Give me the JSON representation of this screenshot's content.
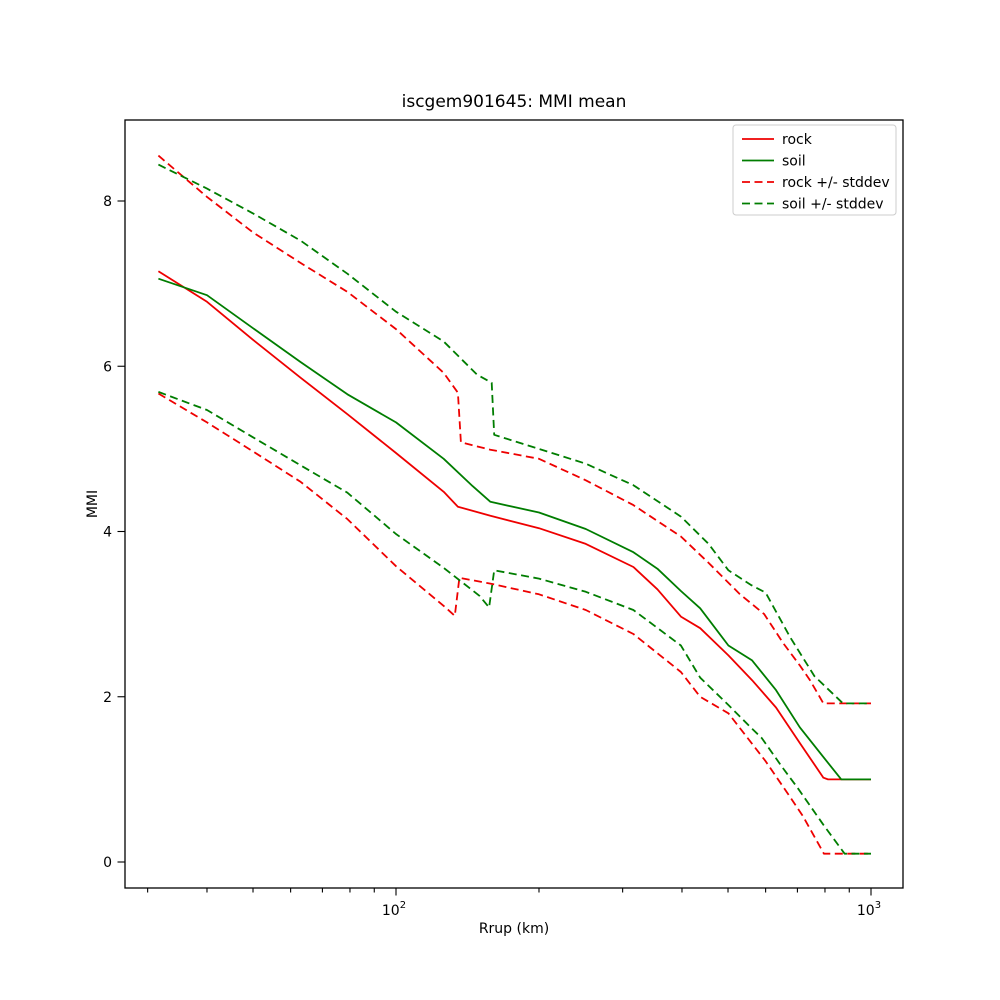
{
  "chart_data": {
    "type": "line",
    "title": "iscgem901645: MMI mean",
    "xlabel": "Rrup (km)",
    "ylabel": "MMI",
    "x_scale": "log10",
    "x_range_km": [
      26.9,
      1170
    ],
    "y_range": [
      -0.31,
      8.98
    ],
    "grid": false,
    "legend_position": "upper right",
    "colors": {
      "rock": "#ee0000",
      "soil": "#007d00"
    },
    "yticks": [
      0,
      2,
      4,
      6,
      8
    ],
    "xticks_major": [
      {
        "value": 100,
        "base": "10",
        "exp": "2"
      },
      {
        "value": 1000,
        "base": "10",
        "exp": "3"
      }
    ],
    "xticks_minor": [
      30,
      40,
      50,
      60,
      70,
      80,
      90,
      200,
      300,
      400,
      500,
      600,
      700,
      800,
      900
    ],
    "legend": [
      {
        "label": "rock",
        "color": "rock",
        "dashed": false
      },
      {
        "label": "soil",
        "color": "soil",
        "dashed": false
      },
      {
        "label": "rock +/- stddev",
        "color": "rock",
        "dashed": true
      },
      {
        "label": "soil +/- stddev",
        "color": "soil",
        "dashed": true
      }
    ],
    "series": [
      {
        "id": "rock-mean",
        "name": "rock",
        "color": "rock",
        "dashed": false,
        "points": [
          [
            31.6,
            7.15
          ],
          [
            40,
            6.78
          ],
          [
            50,
            6.32
          ],
          [
            63,
            5.86
          ],
          [
            79,
            5.42
          ],
          [
            100,
            4.95
          ],
          [
            126,
            4.48
          ],
          [
            135,
            4.3
          ],
          [
            158,
            4.19
          ],
          [
            200,
            4.04
          ],
          [
            251,
            3.85
          ],
          [
            316,
            3.57
          ],
          [
            355,
            3.3
          ],
          [
            398,
            2.97
          ],
          [
            437,
            2.83
          ],
          [
            501,
            2.5
          ],
          [
            562,
            2.2
          ],
          [
            631,
            1.87
          ],
          [
            708,
            1.44
          ],
          [
            794,
            1.02
          ],
          [
            812,
            1.0
          ],
          [
            1000,
            1.0
          ]
        ]
      },
      {
        "id": "soil-mean",
        "name": "soil",
        "color": "soil",
        "dashed": false,
        "points": [
          [
            31.6,
            7.06
          ],
          [
            40,
            6.86
          ],
          [
            50,
            6.46
          ],
          [
            63,
            6.05
          ],
          [
            79,
            5.66
          ],
          [
            100,
            5.32
          ],
          [
            126,
            4.88
          ],
          [
            145,
            4.55
          ],
          [
            158,
            4.36
          ],
          [
            200,
            4.23
          ],
          [
            251,
            4.03
          ],
          [
            316,
            3.75
          ],
          [
            355,
            3.55
          ],
          [
            398,
            3.28
          ],
          [
            437,
            3.07
          ],
          [
            501,
            2.62
          ],
          [
            562,
            2.44
          ],
          [
            631,
            2.08
          ],
          [
            708,
            1.63
          ],
          [
            794,
            1.27
          ],
          [
            866,
            1.0
          ],
          [
            1000,
            1.0
          ]
        ]
      },
      {
        "id": "rock-plus-stddev",
        "name": "rock + stddev",
        "color": "rock",
        "dashed": true,
        "points": [
          [
            31.6,
            8.55
          ],
          [
            40,
            8.05
          ],
          [
            50,
            7.62
          ],
          [
            63,
            7.25
          ],
          [
            79,
            6.9
          ],
          [
            100,
            6.45
          ],
          [
            126,
            5.92
          ],
          [
            135,
            5.68
          ],
          [
            137,
            5.08
          ],
          [
            158,
            4.99
          ],
          [
            200,
            4.88
          ],
          [
            251,
            4.62
          ],
          [
            316,
            4.32
          ],
          [
            398,
            3.94
          ],
          [
            455,
            3.62
          ],
          [
            501,
            3.38
          ],
          [
            530,
            3.24
          ],
          [
            596,
            3.0
          ],
          [
            653,
            2.65
          ],
          [
            708,
            2.38
          ],
          [
            744,
            2.2
          ],
          [
            794,
            1.92
          ],
          [
            1000,
            1.92
          ]
        ]
      },
      {
        "id": "rock-minus-stddev",
        "name": "rock - stddev",
        "color": "rock",
        "dashed": true,
        "points": [
          [
            31.6,
            5.67
          ],
          [
            40,
            5.32
          ],
          [
            50,
            4.97
          ],
          [
            63,
            4.6
          ],
          [
            79,
            4.15
          ],
          [
            100,
            3.58
          ],
          [
            126,
            3.1
          ],
          [
            133,
            2.98
          ],
          [
            136,
            3.44
          ],
          [
            158,
            3.37
          ],
          [
            200,
            3.24
          ],
          [
            251,
            3.05
          ],
          [
            316,
            2.76
          ],
          [
            398,
            2.3
          ],
          [
            437,
            2.0
          ],
          [
            501,
            1.8
          ],
          [
            528,
            1.63
          ],
          [
            600,
            1.22
          ],
          [
            675,
            0.79
          ],
          [
            720,
            0.55
          ],
          [
            796,
            0.1
          ],
          [
            1000,
            0.1
          ]
        ]
      },
      {
        "id": "soil-plus-stddev",
        "name": "soil + stddev",
        "color": "soil",
        "dashed": true,
        "points": [
          [
            31.6,
            8.44
          ],
          [
            40,
            8.15
          ],
          [
            50,
            7.85
          ],
          [
            63,
            7.52
          ],
          [
            79,
            7.12
          ],
          [
            100,
            6.66
          ],
          [
            126,
            6.3
          ],
          [
            148,
            5.9
          ],
          [
            159,
            5.8
          ],
          [
            161,
            5.17
          ],
          [
            200,
            5.0
          ],
          [
            251,
            4.82
          ],
          [
            316,
            4.56
          ],
          [
            398,
            4.18
          ],
          [
            455,
            3.85
          ],
          [
            501,
            3.53
          ],
          [
            560,
            3.35
          ],
          [
            600,
            3.26
          ],
          [
            676,
            2.72
          ],
          [
            760,
            2.25
          ],
          [
            873,
            1.92
          ],
          [
            1000,
            1.92
          ]
        ]
      },
      {
        "id": "soil-minus-stddev",
        "name": "soil - stddev",
        "color": "soil",
        "dashed": true,
        "points": [
          [
            31.6,
            5.69
          ],
          [
            40,
            5.47
          ],
          [
            50,
            5.14
          ],
          [
            63,
            4.8
          ],
          [
            79,
            4.47
          ],
          [
            100,
            3.97
          ],
          [
            126,
            3.56
          ],
          [
            150,
            3.22
          ],
          [
            157,
            3.08
          ],
          [
            161,
            3.53
          ],
          [
            200,
            3.43
          ],
          [
            251,
            3.27
          ],
          [
            316,
            3.05
          ],
          [
            398,
            2.62
          ],
          [
            437,
            2.23
          ],
          [
            501,
            1.9
          ],
          [
            560,
            1.62
          ],
          [
            589,
            1.5
          ],
          [
            650,
            1.15
          ],
          [
            700,
            0.9
          ],
          [
            794,
            0.45
          ],
          [
            880,
            0.1
          ],
          [
            1000,
            0.1
          ]
        ]
      }
    ]
  }
}
